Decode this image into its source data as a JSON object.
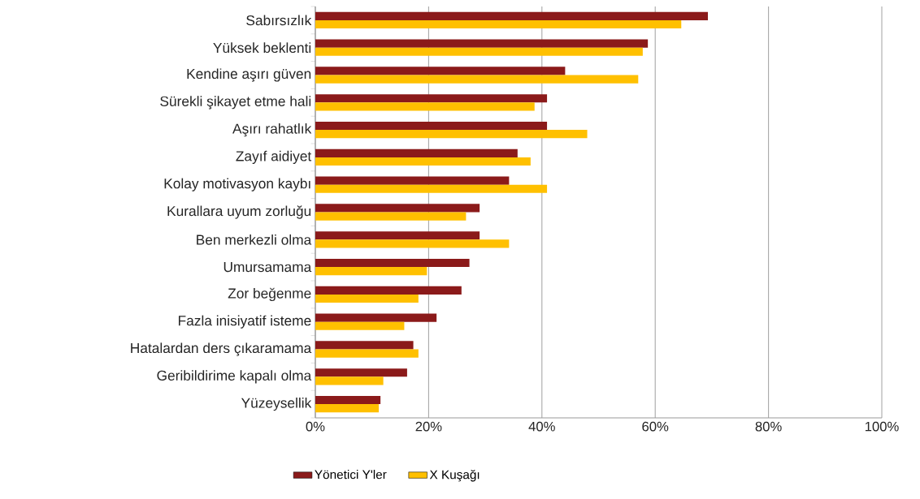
{
  "chart_data": {
    "type": "bar",
    "orientation": "horizontal",
    "categories": [
      "Sabırsızlık",
      "Yüksek beklenti",
      "Kendine aşırı güven",
      "Sürekli şikayet etme hali",
      "Aşırı rahatlık",
      "Zayıf aidiyet",
      "Kolay motivasyon kaybı",
      "Kurallara uyum zorluğu",
      "Ben merkezli olma",
      "Umursamama",
      "Zor beğenme",
      "Fazla inisiyatif isteme",
      "Hatalardan ders çıkaramama",
      "Geribildirime kapalı olma",
      "Yüzeysellik"
    ],
    "series": [
      {
        "name": "Yönetici Y'ler",
        "color": "#8b1a1a",
        "values": [
          69.3,
          58.7,
          44.1,
          40.9,
          40.9,
          35.7,
          34.2,
          29.0,
          29.0,
          27.2,
          25.8,
          21.4,
          17.3,
          16.2,
          11.5
        ]
      },
      {
        "name": "X Kuşağı",
        "color": "#ffc000",
        "values": [
          64.6,
          57.8,
          57.0,
          38.7,
          48.0,
          38.0,
          40.9,
          26.6,
          34.2,
          19.7,
          18.2,
          15.7,
          18.2,
          12.0,
          11.2
        ]
      }
    ],
    "xlim": [
      0,
      100
    ],
    "xticks": [
      {
        "value": 0,
        "label": "0%"
      },
      {
        "value": 20,
        "label": "20%"
      },
      {
        "value": 40,
        "label": "40%"
      },
      {
        "value": 60,
        "label": "60%"
      },
      {
        "value": 80,
        "label": "80%"
      },
      {
        "value": 100,
        "label": "100%"
      }
    ],
    "grid": "x",
    "legend": "bottom"
  }
}
